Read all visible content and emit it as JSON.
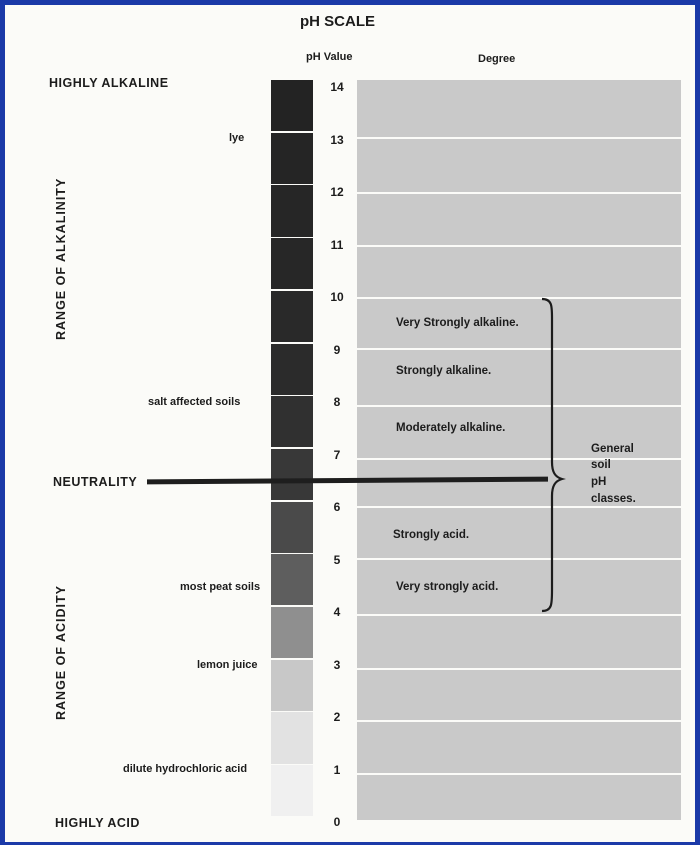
{
  "title": "pH SCALE",
  "headers": {
    "ph_value": "pH Value",
    "degree": "Degree"
  },
  "extremes": {
    "alkaline": "HIGHLY ALKALINE",
    "neutral": "NEUTRALITY",
    "acid": "HIGHLY ACID"
  },
  "ranges": {
    "alkalinity": "RANGE OF ALKALINITY",
    "acidity": "RANGE OF ACIDITY"
  },
  "ph_values": [
    "14",
    "13",
    "12",
    "11",
    "10",
    "9",
    "8",
    "7",
    "6",
    "5",
    "4",
    "3",
    "2",
    "1",
    "0"
  ],
  "examples": {
    "lye": "lye",
    "salt_soils": "salt affected soils",
    "peat_soils": "most peat soils",
    "lemon_juice": "lemon juice",
    "hcl": "dilute hydrochloric acid"
  },
  "degrees": {
    "very_strongly_alkaline": "Very Strongly alkaline.",
    "strongly_alkaline": "Strongly alkaline.",
    "moderately_alkaline": "Moderately alkaline.",
    "strongly_acid": "Strongly acid.",
    "very_strongly_acid": "Very strongly acid."
  },
  "bracket_note": [
    "General",
    "soil",
    "pH",
    "classes."
  ],
  "colors": {
    "border": "#1b3aa8",
    "scale_dark": "#262626",
    "scale_light": "#f2f2f2",
    "degree_band": "#c9c9c9"
  }
}
